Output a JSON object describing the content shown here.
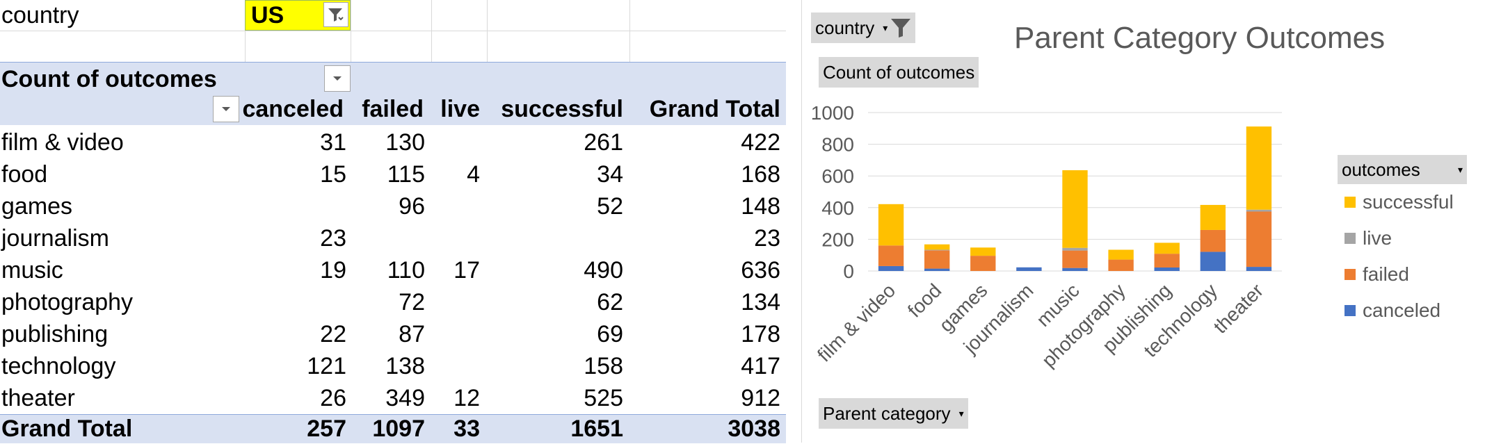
{
  "filter": {
    "label": "country",
    "value": "US"
  },
  "pivot": {
    "header_label": "Count of outcomes",
    "columns": [
      "canceled",
      "failed",
      "live",
      "successful",
      "Grand Total"
    ],
    "rows": [
      {
        "label": "film & video",
        "values": [
          "31",
          "130",
          "",
          "261",
          "422"
        ]
      },
      {
        "label": "food",
        "values": [
          "15",
          "115",
          "4",
          "34",
          "168"
        ]
      },
      {
        "label": "games",
        "values": [
          "",
          "96",
          "",
          "52",
          "148"
        ]
      },
      {
        "label": "journalism",
        "values": [
          "23",
          "",
          "",
          "",
          "23"
        ]
      },
      {
        "label": "music",
        "values": [
          "19",
          "110",
          "17",
          "490",
          "636"
        ]
      },
      {
        "label": "photography",
        "values": [
          "",
          "72",
          "",
          "62",
          "134"
        ]
      },
      {
        "label": "publishing",
        "values": [
          "22",
          "87",
          "",
          "69",
          "178"
        ]
      },
      {
        "label": "technology",
        "values": [
          "121",
          "138",
          "",
          "158",
          "417"
        ]
      },
      {
        "label": "theater",
        "values": [
          "26",
          "349",
          "12",
          "525",
          "912"
        ]
      }
    ],
    "grand_total": {
      "label": "Grand Total",
      "values": [
        "257",
        "1097",
        "33",
        "1651",
        "3038"
      ]
    }
  },
  "chart": {
    "filter_button": "country",
    "value_button": "Count of outcomes",
    "axis_button": "Parent category",
    "legend_button": "outcomes",
    "icons": {
      "filter": "funnel-icon",
      "dropdown": "chevron-down-icon"
    }
  },
  "chart_data": {
    "type": "bar",
    "stacked": true,
    "title": "Parent Category Outcomes",
    "categories": [
      "film & video",
      "food",
      "games",
      "journalism",
      "music",
      "photography",
      "publishing",
      "technology",
      "theater"
    ],
    "series": [
      {
        "name": "canceled",
        "color": "#4472c4",
        "values": [
          31,
          15,
          0,
          23,
          19,
          0,
          22,
          121,
          26
        ]
      },
      {
        "name": "failed",
        "color": "#ed7d31",
        "values": [
          130,
          115,
          96,
          0,
          110,
          72,
          87,
          138,
          349
        ]
      },
      {
        "name": "live",
        "color": "#a5a5a5",
        "values": [
          0,
          4,
          0,
          0,
          17,
          0,
          0,
          0,
          12
        ]
      },
      {
        "name": "successful",
        "color": "#ffc000",
        "values": [
          261,
          34,
          52,
          0,
          490,
          62,
          69,
          158,
          525
        ]
      }
    ],
    "legend_order": [
      "successful",
      "live",
      "failed",
      "canceled"
    ],
    "ylim": [
      0,
      1000
    ],
    "yticks": [
      "0",
      "200",
      "400",
      "600",
      "800",
      "1000"
    ],
    "grid": true,
    "legend_position": "right"
  }
}
